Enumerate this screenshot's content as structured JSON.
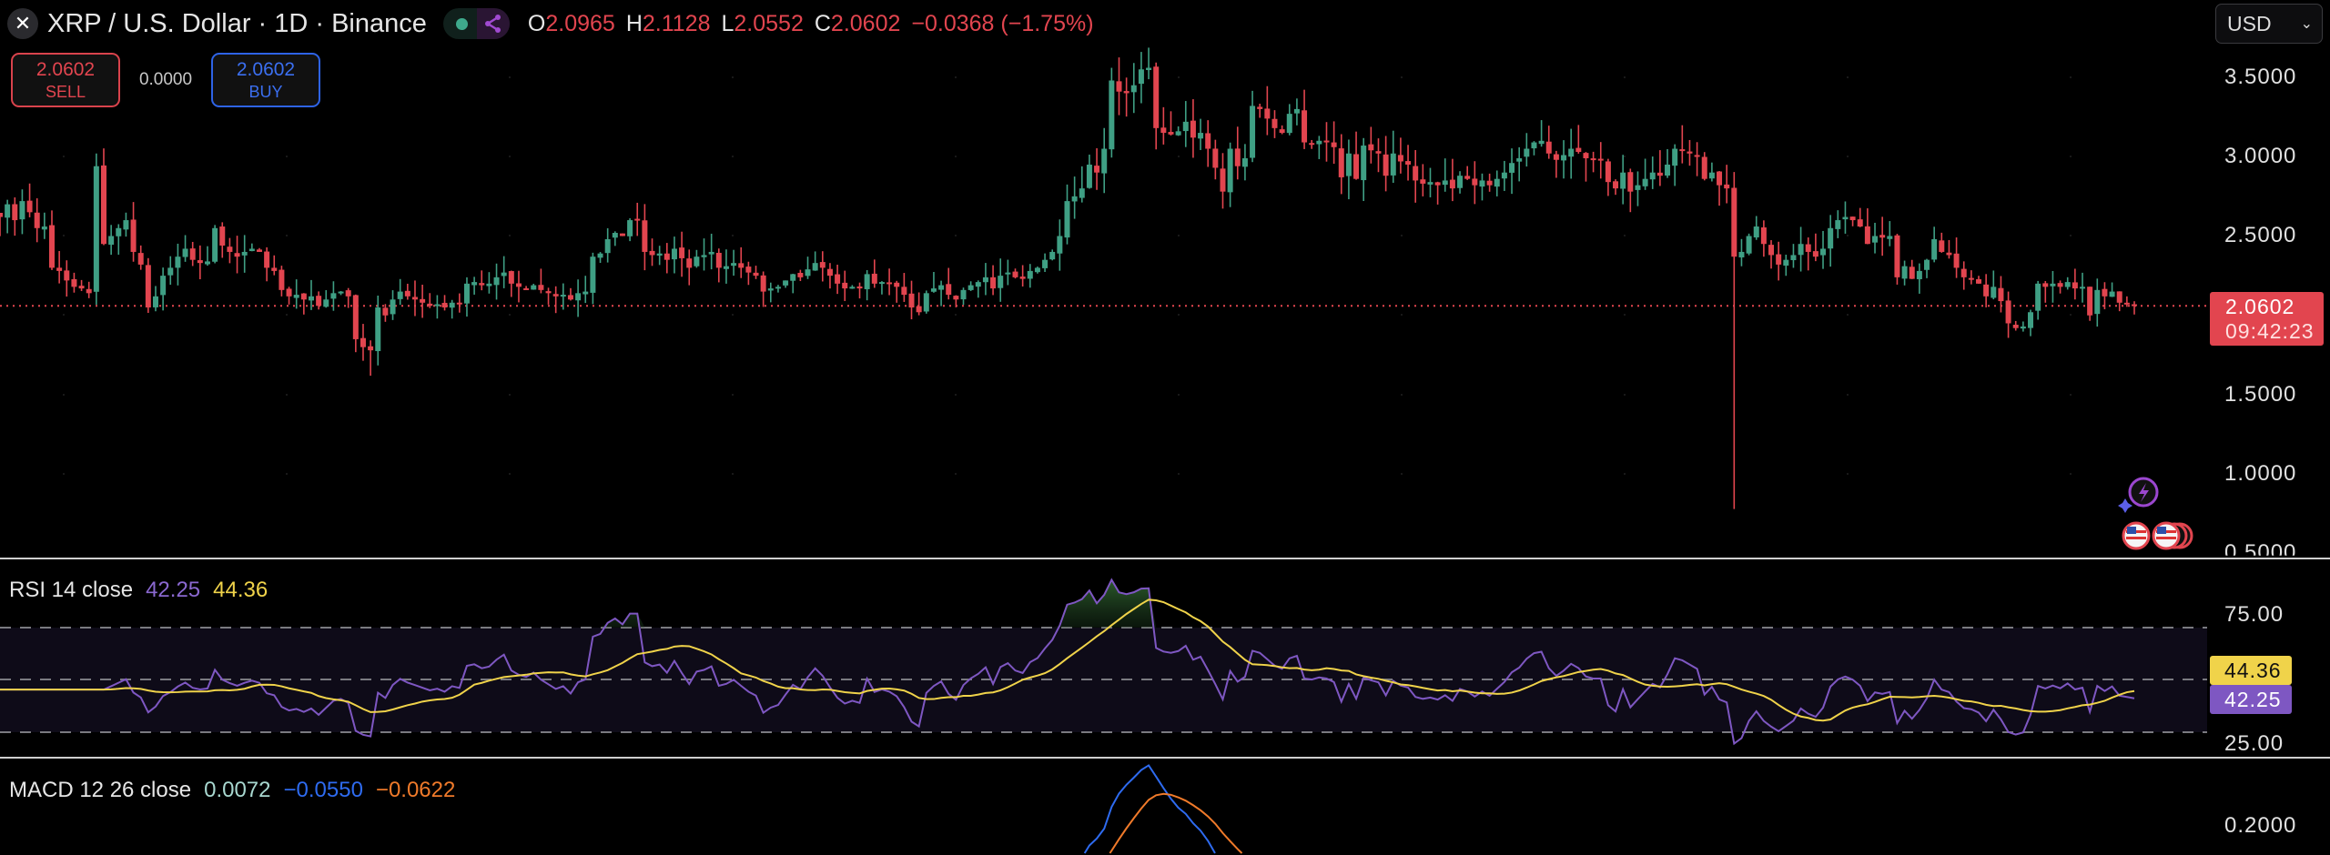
{
  "header": {
    "title": "XRP / U.S. Dollar · 1D · Binance",
    "ohlc": [
      {
        "key": "O",
        "value": "2.0965"
      },
      {
        "key": "H",
        "value": "2.1128"
      },
      {
        "key": "L",
        "value": "2.0552"
      },
      {
        "key": "C",
        "value": "2.0602"
      }
    ],
    "change": "−0.0368 (−1.75%)"
  },
  "trade": {
    "sell_price": "2.0602",
    "sell_label": "SELL",
    "spread": "0.0000",
    "buy_price": "2.0602",
    "buy_label": "BUY"
  },
  "currency": {
    "selected": "USD"
  },
  "price_axis": {
    "ticks": [
      "3.5000",
      "3.0000",
      "2.5000",
      "1.5000",
      "1.0000",
      "0.5000"
    ],
    "current_price": "2.0602",
    "countdown": "09:42:23"
  },
  "rsi": {
    "label": "RSI 14 close",
    "value": "42.25",
    "ma_value": "44.36",
    "ticks": [
      "75.00",
      "25.00"
    ],
    "bands": [
      70,
      50,
      30
    ]
  },
  "macd": {
    "label": "MACD 12 26 close",
    "histogram": "0.0072",
    "macd": "−0.0550",
    "signal": "−0.0622",
    "ticks": [
      "0.2000"
    ]
  },
  "colors": {
    "up": "#3f9f84",
    "down": "#e2454f",
    "rsi": "#7e57c2",
    "rsi_ma": "#f0d34a",
    "macd": "#2e6bf0",
    "signal": "#f07a2a",
    "hist": "#a8d8d0",
    "price_line": "#e2454f"
  },
  "icons": [
    "close-x-icon",
    "market-open-dot-icon",
    "share-network-icon",
    "chevron-down-icon",
    "lightning-icon",
    "sparkle-icon",
    "us-flag-icon"
  ],
  "chart_data": {
    "type": "candlestick",
    "interval": "1D",
    "ylim": [
      0.5,
      3.6
    ],
    "closes": [
      2.62,
      2.7,
      2.6,
      2.72,
      2.65,
      2.55,
      2.56,
      2.3,
      2.28,
      2.22,
      2.18,
      2.17,
      2.14,
      2.94,
      2.45,
      2.5,
      2.55,
      2.6,
      2.4,
      2.32,
      2.05,
      2.12,
      2.25,
      2.3,
      2.37,
      2.42,
      2.35,
      2.33,
      2.34,
      2.55,
      2.44,
      2.4,
      2.37,
      2.4,
      2.42,
      2.4,
      2.3,
      2.28,
      2.16,
      2.12,
      2.13,
      2.1,
      2.12,
      2.06,
      2.1,
      2.14,
      2.15,
      2.12,
      1.85,
      1.8,
      1.78,
      2.05,
      2.0,
      2.1,
      2.15,
      2.12,
      2.1,
      2.08,
      2.06,
      2.07,
      2.05,
      2.08,
      2.07,
      2.2,
      2.21,
      2.19,
      2.2,
      2.24,
      2.27,
      2.2,
      2.18,
      2.17,
      2.19,
      2.16,
      2.14,
      2.12,
      2.13,
      2.1,
      2.14,
      2.15,
      2.37,
      2.39,
      2.48,
      2.52,
      2.5,
      2.6,
      2.6,
      2.4,
      2.38,
      2.39,
      2.35,
      2.42,
      2.36,
      2.3,
      2.37,
      2.38,
      2.4,
      2.3,
      2.31,
      2.33,
      2.3,
      2.27,
      2.25,
      2.15,
      2.17,
      2.18,
      2.22,
      2.26,
      2.24,
      2.29,
      2.33,
      2.3,
      2.25,
      2.2,
      2.17,
      2.18,
      2.17,
      2.26,
      2.2,
      2.21,
      2.2,
      2.18,
      2.13,
      2.05,
      2.02,
      2.14,
      2.17,
      2.19,
      2.13,
      2.1,
      2.16,
      2.19,
      2.21,
      2.24,
      2.17,
      2.25,
      2.27,
      2.24,
      2.23,
      2.28,
      2.3,
      2.35,
      2.4,
      2.5,
      2.72,
      2.75,
      2.8,
      2.95,
      2.9,
      3.05,
      3.48,
      3.41,
      3.4,
      3.45,
      3.55,
      3.56,
      3.18,
      3.15,
      3.14,
      3.16,
      3.22,
      3.12,
      3.15,
      3.05,
      2.93,
      2.78,
      3.05,
      2.94,
      2.99,
      3.32,
      3.3,
      3.24,
      3.18,
      3.15,
      3.27,
      3.3,
      3.09,
      3.08,
      3.1,
      3.09,
      3.06,
      2.87,
      3.02,
      2.86,
      3.07,
      3.04,
      3.02,
      2.88,
      3.02,
      2.97,
      2.95,
      2.85,
      2.83,
      2.84,
      2.82,
      2.85,
      2.8,
      2.88,
      2.86,
      2.82,
      2.85,
      2.82,
      2.86,
      2.9,
      2.96,
      2.99,
      3.05,
      3.09,
      3.1,
      3.02,
      2.98,
      3.01,
      3.05,
      3.03,
      2.99,
      2.98,
      2.98,
      2.84,
      2.8,
      2.9,
      2.78,
      2.82,
      2.86,
      2.9,
      2.88,
      2.95,
      3.05,
      3.04,
      3.02,
      3.0,
      2.86,
      2.9,
      2.82,
      2.8,
      2.37,
      2.4,
      2.5,
      2.56,
      2.45,
      2.38,
      2.32,
      2.35,
      2.38,
      2.45,
      2.4,
      2.37,
      2.42,
      2.55,
      2.6,
      2.62,
      2.6,
      2.56,
      2.45,
      2.5,
      2.49,
      2.5,
      2.24,
      2.31,
      2.23,
      2.28,
      2.35,
      2.48,
      2.4,
      2.38,
      2.3,
      2.24,
      2.23,
      2.2,
      2.12,
      2.18,
      2.09,
      1.95,
      1.92,
      1.93,
      2.02,
      2.2,
      2.18,
      2.2,
      2.18,
      2.21,
      2.17,
      2.18,
      2.0,
      2.16,
      2.12,
      2.15,
      2.08,
      2.07,
      2.0602
    ],
    "notable_lows": [
      {
        "index": 234,
        "low": 0.78
      },
      {
        "index": 50,
        "low": 1.62
      }
    ],
    "notable_highs": [
      {
        "index": 154,
        "high": 3.66
      },
      {
        "index": 13,
        "high": 3.02
      }
    ]
  }
}
